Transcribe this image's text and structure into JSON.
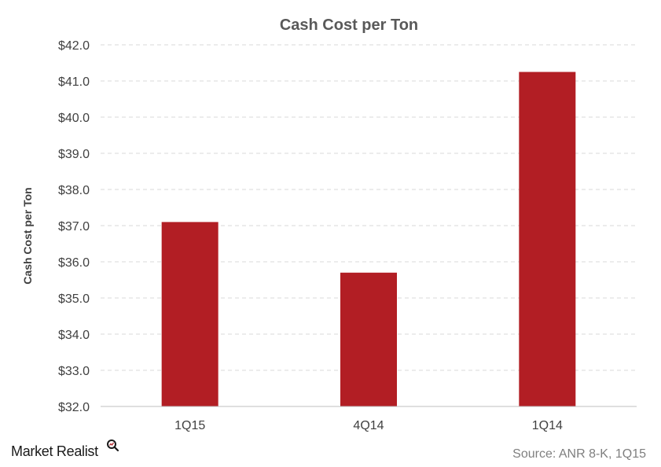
{
  "chart_data": {
    "type": "bar",
    "title": "Cash Cost per Ton",
    "ylabel": "Cash Cost per Ton",
    "xlabel": "",
    "categories": [
      "1Q15",
      "4Q14",
      "1Q14"
    ],
    "values": [
      37.1,
      35.7,
      41.25
    ],
    "ylim": [
      32.0,
      42.0
    ],
    "yticks": [
      "$32.0",
      "$33.0",
      "$34.0",
      "$35.0",
      "$36.0",
      "$37.0",
      "$38.0",
      "$39.0",
      "$40.0",
      "$41.0",
      "$42.0"
    ],
    "grid": true,
    "bar_color": "#b21e24"
  },
  "footer": {
    "logo": "Market Realist",
    "source": "Source: ANR 8-K, 1Q15"
  }
}
